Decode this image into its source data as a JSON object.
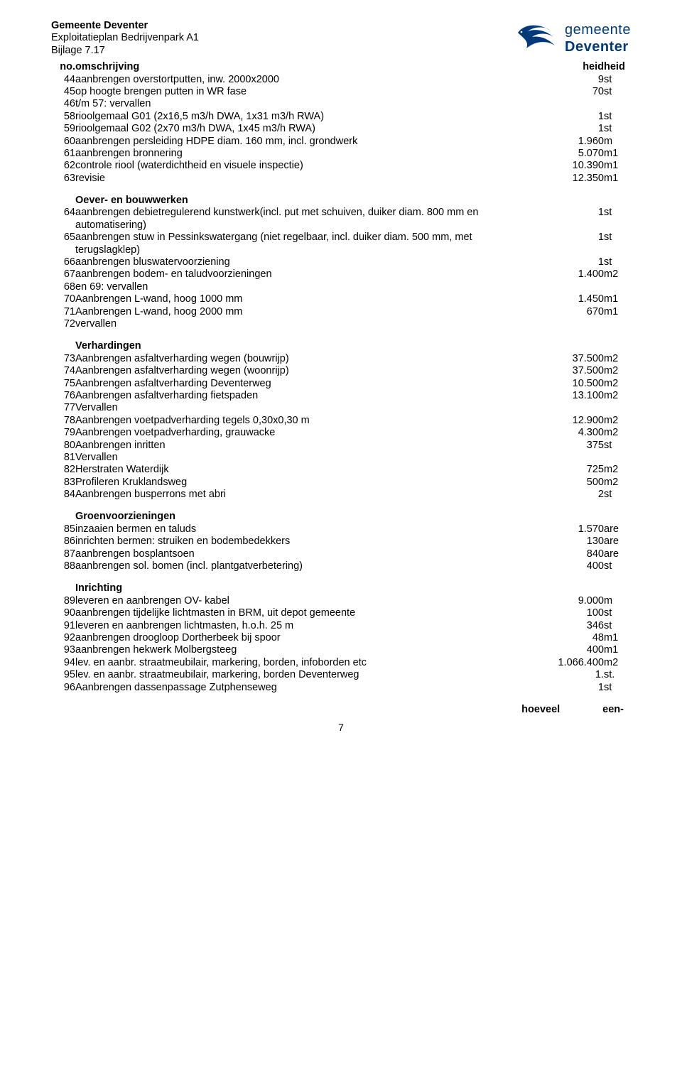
{
  "header": {
    "line1": "Gemeente Deventer",
    "line2": "Exploitatieplan Bedrijvenpark A1",
    "line3": "Bijlage 7.17",
    "logo_word1": "gemeente",
    "logo_word2": "Deventer",
    "logo_color": "#003A7A"
  },
  "columns": {
    "no": "no.",
    "desc": "omschrijving",
    "val": "heid",
    "unit": "heid"
  },
  "rows": [
    {
      "no": "44",
      "desc": "aanbrengen overstortputten, inw. 2000x2000",
      "val": "9",
      "unit": "st"
    },
    {
      "no": "45",
      "desc": "op hoogte brengen putten in WR fase",
      "val": "70",
      "unit": "st"
    },
    {
      "no": "46",
      "desc": "t/m 57: vervallen",
      "val": "",
      "unit": ""
    },
    {
      "no": "58",
      "desc": "rioolgemaal G01 (2x16,5 m3/h DWA, 1x31 m3/h RWA)",
      "val": "1",
      "unit": "st"
    },
    {
      "no": "59",
      "desc": "rioolgemaal G02 (2x70 m3/h DWA, 1x45 m3/h RWA)",
      "val": "1",
      "unit": "st"
    },
    {
      "no": "60",
      "desc": "aanbrengen persleiding HDPE diam. 160 mm, incl. grondwerk",
      "val": "1.960",
      "unit": "m"
    },
    {
      "no": "61",
      "desc": "aanbrengen bronnering",
      "val": "5.070",
      "unit": "m1"
    },
    {
      "no": "62",
      "desc": "controle riool (waterdichtheid en visuele inspectie)",
      "val": "10.390",
      "unit": "m1"
    },
    {
      "no": "63",
      "desc": "revisie",
      "val": "12.350",
      "unit": "m1"
    },
    {
      "spacer": true
    },
    {
      "section": "Oever- en bouwwerken"
    },
    {
      "no": "64",
      "desc": "aanbrengen debietregulerend kunstwerk(incl. put met schuiven, duiker diam. 800 mm en automatisering)",
      "val": "1",
      "unit": "st"
    },
    {
      "no": "65",
      "desc": "aanbrengen stuw in Pessinkswatergang (niet regelbaar, incl. duiker diam. 500 mm, met terugslagklep)",
      "val": "1",
      "unit": "st"
    },
    {
      "no": "66",
      "desc": "aanbrengen bluswatervoorziening",
      "val": "1",
      "unit": "st"
    },
    {
      "no": "67",
      "desc": "aanbrengen bodem- en taludvoorzieningen",
      "val": "1.400",
      "unit": "m2"
    },
    {
      "no": "68",
      "desc": "en 69: vervallen",
      "val": "",
      "unit": ""
    },
    {
      "no": "70",
      "desc": "Aanbrengen L-wand, hoog  1000 mm",
      "val": "1.450",
      "unit": "m1"
    },
    {
      "no": "71",
      "desc": "Aanbrengen L-wand, hoog  2000 mm",
      "val": "670",
      "unit": "m1"
    },
    {
      "no": "72",
      "desc": "vervallen",
      "val": "",
      "unit": ""
    },
    {
      "spacer": true
    },
    {
      "section": "Verhardingen"
    },
    {
      "no": "73",
      "desc": "Aanbrengen asfaltverharding wegen (bouwrijp)",
      "val": "37.500",
      "unit": "m2"
    },
    {
      "no": "74",
      "desc": "Aanbrengen asfaltverharding wegen (woonrijp)",
      "val": "37.500",
      "unit": "m2"
    },
    {
      "no": "75",
      "desc": "Aanbrengen asfaltverharding Deventerweg",
      "val": "10.500",
      "unit": "m2"
    },
    {
      "no": "76",
      "desc": "Aanbrengen asfaltverharding fietspaden",
      "val": "13.100",
      "unit": "m2"
    },
    {
      "no": "77",
      "desc": "Vervallen",
      "val": "",
      "unit": ""
    },
    {
      "no": "78",
      "desc": "Aanbrengen voetpadverharding tegels 0,30x0,30 m",
      "val": "12.900",
      "unit": "m2"
    },
    {
      "no": "79",
      "desc": "Aanbrengen voetpadverharding, grauwacke",
      "val": "4.300",
      "unit": "m2"
    },
    {
      "no": "80",
      "desc": "Aanbrengen inritten",
      "val": "375",
      "unit": "st"
    },
    {
      "no": "81",
      "desc": "Vervallen",
      "val": "",
      "unit": ""
    },
    {
      "no": "82",
      "desc": "Herstraten Waterdijk",
      "val": "725",
      "unit": "m2"
    },
    {
      "no": "83",
      "desc": "Profileren Kruklandsweg",
      "val": "500",
      "unit": "m2"
    },
    {
      "no": "84",
      "desc": "Aanbrengen busperrons met abri",
      "val": "2",
      "unit": "st"
    },
    {
      "spacer": true
    },
    {
      "section": "Groenvoorzieningen"
    },
    {
      "no": "85",
      "desc": "inzaaien bermen en taluds",
      "val": "1.570",
      "unit": "are"
    },
    {
      "no": "86",
      "desc": "inrichten bermen: struiken en bodembedekkers",
      "val": "130",
      "unit": "are"
    },
    {
      "no": "87",
      "desc": "aanbrengen bosplantsoen",
      "val": "840",
      "unit": "are"
    },
    {
      "no": "88",
      "desc": "aanbrengen sol. bomen (incl. plantgatverbetering)",
      "val": "400",
      "unit": "st"
    },
    {
      "spacer": true
    },
    {
      "section": "Inrichting"
    },
    {
      "no": "89",
      "desc": "leveren en aanbrengen OV- kabel",
      "val": "9.000",
      "unit": "m"
    },
    {
      "no": "90",
      "desc": "aanbrengen tijdelijke lichtmasten in BRM, uit depot gemeente",
      "val": "100",
      "unit": "st"
    },
    {
      "no": "91",
      "desc": "leveren en aanbrengen lichtmasten, h.o.h. 25 m",
      "val": "346",
      "unit": "st"
    },
    {
      "no": "92",
      "desc": "aanbrengen droogloop Dortherbeek bij spoor",
      "val": "48",
      "unit": "m1"
    },
    {
      "no": "93",
      "desc": "aanbrengen hekwerk Molbergsteeg",
      "val": "400",
      "unit": "m1"
    },
    {
      "no": "94",
      "desc": "lev. en aanbr. straatmeubilair, markering, borden, infoborden etc",
      "val": "1.066.400",
      "unit": "m2"
    },
    {
      "no": "95",
      "desc": "lev. en aanbr. straatmeubilair, markering, borden Deventerweg",
      "val": "1.",
      "unit": "st."
    },
    {
      "no": "96",
      "desc": "Aanbrengen dassenpassage Zutphenseweg",
      "val": "1",
      "unit": "st"
    }
  ],
  "footer_labels": {
    "left": "hoeveel",
    "right": "een-"
  },
  "page_number": "7"
}
